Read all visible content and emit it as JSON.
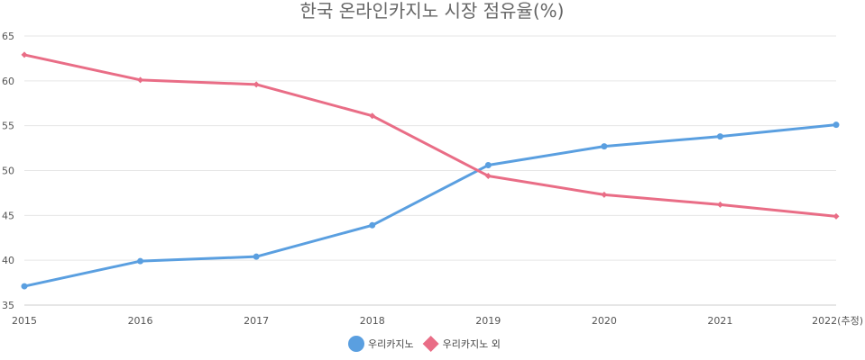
{
  "chart_data": {
    "type": "line",
    "title": "한국 온라인카지노 시장 점유율(%)",
    "xlabel": "",
    "ylabel": "",
    "categories": [
      "2015",
      "2016",
      "2017",
      "2018",
      "2019",
      "2020",
      "2021",
      "2022(추정)"
    ],
    "ylim": [
      35,
      65
    ],
    "yticks": [
      35,
      40,
      45,
      50,
      55,
      60,
      65
    ],
    "grid": true,
    "legend_position": "bottom",
    "series": [
      {
        "name": "우리카지노",
        "color": "#5a9fe0",
        "marker": "circle",
        "values": [
          37.1,
          39.9,
          40.4,
          43.9,
          50.6,
          52.7,
          53.8,
          55.1
        ]
      },
      {
        "name": "우리카지노 외",
        "color": "#e96d86",
        "marker": "diamond",
        "values": [
          62.9,
          60.1,
          59.6,
          56.1,
          49.4,
          47.3,
          46.2,
          44.9
        ]
      }
    ]
  }
}
